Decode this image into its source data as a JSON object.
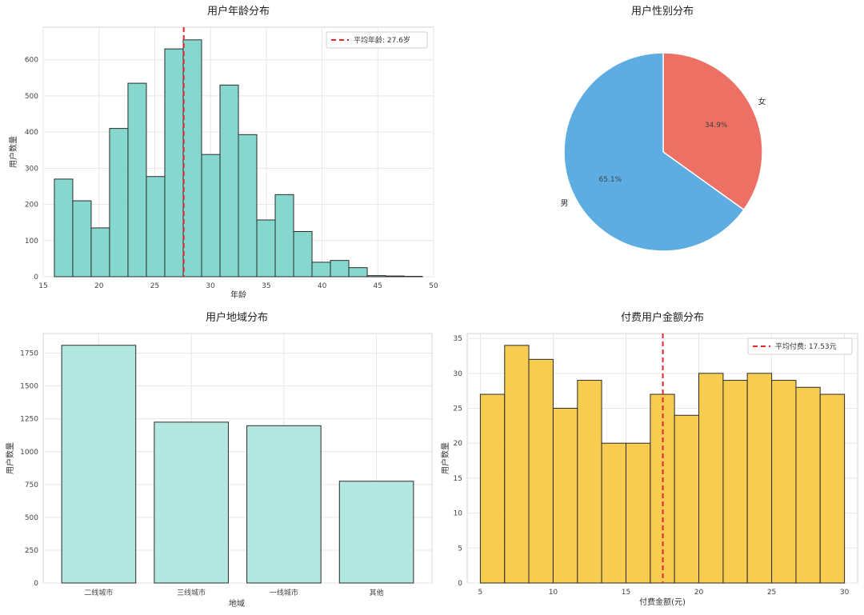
{
  "chart_data": [
    {
      "type": "bar",
      "subtype": "histogram",
      "title": "用户年龄分布",
      "xlabel": "年龄",
      "ylabel": "用户数量",
      "xlim": [
        15,
        50
      ],
      "ylim": [
        0,
        690
      ],
      "xticks": [
        "15",
        "20",
        "25",
        "30",
        "35",
        "40",
        "45",
        "50"
      ],
      "yticks": [
        "0",
        "100",
        "200",
        "300",
        "400",
        "500",
        "600"
      ],
      "bin_edges": [
        16,
        17.65,
        19.3,
        20.95,
        22.6,
        24.25,
        25.9,
        27.55,
        29.2,
        30.85,
        32.5,
        34.15,
        35.8,
        37.45,
        39.1,
        40.75,
        42.4,
        44.05,
        45.7,
        47.35,
        49
      ],
      "values": [
        270,
        210,
        135,
        410,
        535,
        277,
        630,
        655,
        338,
        530,
        393,
        157,
        227,
        125,
        40,
        45,
        25,
        3,
        2,
        1
      ],
      "color": "#7fd6cc",
      "mean_line": {
        "x": 27.6,
        "color": "#e8262a"
      },
      "legend": {
        "label": "平均年龄: 27.6岁",
        "position": "top-right"
      },
      "grid": true
    },
    {
      "type": "pie",
      "title": "用户性别分布",
      "labels": [
        "女",
        "男"
      ],
      "values": [
        34.9,
        65.1
      ],
      "value_labels": [
        "34.9%",
        "65.1%"
      ],
      "colors": [
        "#ec7063",
        "#5dade2"
      ]
    },
    {
      "type": "bar",
      "title": "用户地域分布",
      "xlabel": "地域",
      "ylabel": "用户数量",
      "categories": [
        "二线城市",
        "三线城市",
        "一线城市",
        "其他"
      ],
      "values": [
        1810,
        1225,
        1198,
        775
      ],
      "ylim": [
        0,
        1900
      ],
      "yticks": [
        "0",
        "250",
        "500",
        "750",
        "1000",
        "1250",
        "1500",
        "1750"
      ],
      "color": "#b3e8e0",
      "grid": true
    },
    {
      "type": "bar",
      "subtype": "histogram",
      "title": "付费用户金额分布",
      "xlabel": "付费金额(元)",
      "ylabel": "用户数量",
      "xlim": [
        4.1,
        30.9
      ],
      "ylim": [
        0,
        35.7
      ],
      "xticks": [
        "5",
        "10",
        "15",
        "20",
        "25",
        "30"
      ],
      "yticks": [
        "0",
        "5",
        "10",
        "15",
        "20",
        "25",
        "30",
        "35"
      ],
      "bin_edges": [
        5,
        6.67,
        8.33,
        10,
        11.67,
        13.33,
        15,
        16.67,
        18.33,
        20,
        21.67,
        23.33,
        25,
        26.67,
        28.33,
        30
      ],
      "values": [
        27,
        34,
        32,
        25,
        29,
        20,
        20,
        27,
        24,
        30,
        29,
        30,
        29,
        28,
        27
      ],
      "color": "#f7c948",
      "mean_line": {
        "x": 17.53,
        "color": "#e8262a"
      },
      "legend": {
        "label": "平均付费: 17.53元",
        "position": "top-right"
      },
      "grid": true
    }
  ]
}
